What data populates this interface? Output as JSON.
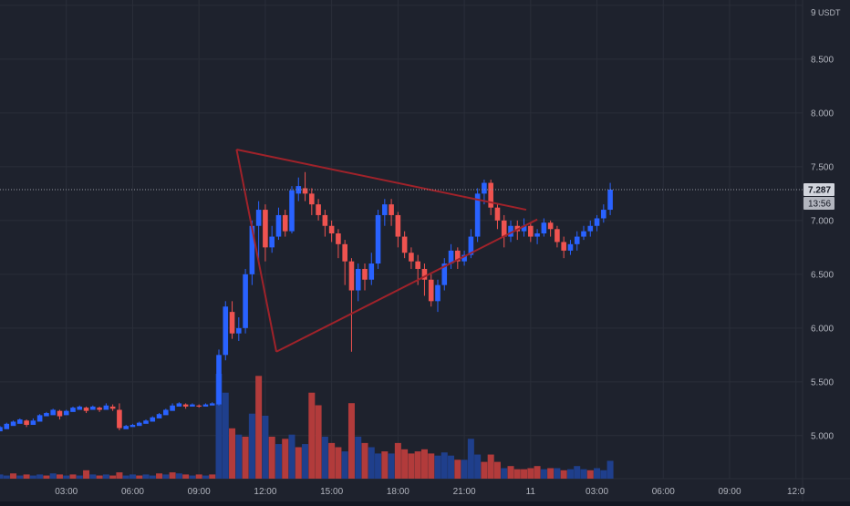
{
  "chart_data": {
    "type": "candlestick",
    "quote_unit": "USDT",
    "y_axis": {
      "min": 4.6,
      "max": 9.05,
      "ticks": [
        "5.000",
        "5.500",
        "6.000",
        "6.500",
        "7.000",
        "7.500",
        "8.000",
        "8.500",
        "9"
      ],
      "tick_values": [
        5.0,
        5.5,
        6.0,
        6.5,
        7.0,
        7.5,
        8.0,
        8.5,
        9.0
      ]
    },
    "x_axis": {
      "ticks": [
        "03:00",
        "06:00",
        "09:00",
        "12:00",
        "15:00",
        "18:00",
        "21:00",
        "11",
        "03:00",
        "06:00",
        "09:00",
        "12:0"
      ],
      "tick_hours": [
        3,
        6,
        9,
        12,
        15,
        18,
        21,
        24,
        27,
        30,
        33,
        36
      ],
      "range_hours": [
        0,
        36.3
      ]
    },
    "last_price": {
      "label": "7.287",
      "value": 7.287,
      "countdown": "13:56"
    },
    "colors": {
      "background": "#1e222d",
      "up": "#2962ff",
      "down": "#ef5350",
      "up_volume": "#1f3f8c",
      "down_volume": "#b23b3b",
      "triangle": "#a0222a",
      "grid": "#2a2e39"
    },
    "triangle": {
      "upper_line": [
        [
          10.7,
          7.66
        ],
        [
          23.8,
          7.1
        ]
      ],
      "lower_line": [
        [
          12.5,
          5.78
        ],
        [
          24.3,
          7.01
        ]
      ]
    },
    "candles": [
      [
        0.0,
        5.04,
        5.08,
        5.06,
        5.09
      ],
      [
        0.3,
        5.06,
        5.11,
        5.09,
        5.12
      ],
      [
        0.6,
        5.09,
        5.13,
        5.11,
        5.14
      ],
      [
        0.9,
        5.11,
        5.15,
        5.13,
        5.16
      ],
      [
        1.2,
        5.14,
        5.1,
        5.15,
        5.08
      ],
      [
        1.5,
        5.1,
        5.14,
        5.11,
        5.16
      ],
      [
        1.8,
        5.13,
        5.19,
        5.17,
        5.2
      ],
      [
        2.1,
        5.18,
        5.21,
        5.2,
        5.22
      ],
      [
        2.4,
        5.19,
        5.24,
        5.22,
        5.25
      ],
      [
        2.7,
        5.23,
        5.18,
        5.24,
        5.15
      ],
      [
        3.0,
        5.19,
        5.23,
        5.22,
        5.24
      ],
      [
        3.3,
        5.22,
        5.26,
        5.24,
        5.27
      ],
      [
        3.6,
        5.24,
        5.27,
        5.26,
        5.28
      ],
      [
        3.9,
        5.26,
        5.23,
        5.27,
        5.21
      ],
      [
        4.2,
        5.24,
        5.27,
        5.26,
        5.28
      ],
      [
        4.5,
        5.26,
        5.24,
        5.27,
        5.22
      ],
      [
        4.8,
        5.24,
        5.28,
        5.27,
        5.3
      ],
      [
        5.1,
        5.27,
        5.25,
        5.29,
        5.23
      ],
      [
        5.4,
        5.24,
        5.07,
        5.3,
        5.05
      ],
      [
        5.7,
        5.06,
        5.09,
        5.08,
        5.1
      ],
      [
        6.0,
        5.08,
        5.1,
        5.09,
        5.11
      ],
      [
        6.3,
        5.09,
        5.12,
        5.11,
        5.13
      ],
      [
        6.6,
        5.11,
        5.14,
        5.13,
        5.15
      ],
      [
        6.9,
        5.13,
        5.17,
        5.15,
        5.18
      ],
      [
        7.2,
        5.16,
        5.2,
        5.19,
        5.21
      ],
      [
        7.5,
        5.19,
        5.24,
        5.22,
        5.25
      ],
      [
        7.8,
        5.23,
        5.28,
        5.27,
        5.3
      ],
      [
        8.1,
        5.27,
        5.3,
        5.29,
        5.31
      ],
      [
        8.4,
        5.29,
        5.27,
        5.3,
        5.25
      ],
      [
        8.7,
        5.27,
        5.29,
        5.29,
        5.3
      ],
      [
        9.0,
        5.28,
        5.27,
        5.29,
        5.26
      ],
      [
        9.3,
        5.27,
        5.29,
        5.28,
        5.3
      ],
      [
        9.6,
        5.28,
        5.3,
        5.3,
        5.31
      ],
      [
        9.9,
        5.29,
        5.75,
        5.8,
        5.28
      ],
      [
        10.2,
        5.75,
        6.2,
        6.25,
        5.7
      ],
      [
        10.5,
        6.15,
        5.95,
        6.25,
        5.9
      ],
      [
        10.8,
        5.95,
        6.0,
        6.1,
        5.88
      ],
      [
        11.1,
        6.0,
        6.5,
        6.55,
        5.95
      ],
      [
        11.4,
        6.5,
        6.95,
        7.0,
        6.4
      ],
      [
        11.7,
        6.95,
        7.1,
        7.18,
        6.6
      ],
      [
        12.0,
        7.1,
        6.75,
        7.15,
        6.62
      ],
      [
        12.3,
        6.75,
        6.85,
        6.95,
        6.7
      ],
      [
        12.6,
        6.85,
        7.05,
        7.12,
        6.82
      ],
      [
        12.9,
        7.05,
        6.9,
        7.1,
        6.85
      ],
      [
        13.2,
        6.9,
        7.28,
        7.32,
        6.88
      ],
      [
        13.5,
        7.25,
        7.32,
        7.4,
        7.18
      ],
      [
        13.8,
        7.3,
        7.25,
        7.45,
        7.18
      ],
      [
        14.1,
        7.25,
        7.15,
        7.3,
        7.05
      ],
      [
        14.4,
        7.15,
        7.05,
        7.2,
        7.0
      ],
      [
        14.7,
        7.05,
        6.95,
        7.1,
        6.85
      ],
      [
        15.0,
        6.95,
        6.88,
        7.0,
        6.8
      ],
      [
        15.3,
        6.88,
        6.78,
        6.92,
        6.65
      ],
      [
        15.6,
        6.78,
        6.62,
        6.82,
        6.4
      ],
      [
        15.9,
        6.62,
        6.35,
        6.65,
        5.78
      ],
      [
        16.2,
        6.35,
        6.55,
        6.6,
        6.25
      ],
      [
        16.5,
        6.55,
        6.45,
        6.6,
        6.35
      ],
      [
        16.8,
        6.45,
        6.6,
        6.7,
        6.4
      ],
      [
        17.1,
        6.6,
        7.05,
        7.1,
        6.55
      ],
      [
        17.4,
        7.05,
        7.15,
        7.2,
        6.95
      ],
      [
        17.7,
        7.15,
        7.05,
        7.2,
        6.95
      ],
      [
        18.0,
        7.05,
        6.85,
        7.08,
        6.75
      ],
      [
        18.3,
        6.85,
        6.7,
        6.9,
        6.65
      ],
      [
        18.6,
        6.7,
        6.62,
        6.75,
        6.55
      ],
      [
        18.9,
        6.62,
        6.55,
        6.68,
        6.4
      ],
      [
        19.2,
        6.55,
        6.45,
        6.6,
        6.3
      ],
      [
        19.5,
        6.45,
        6.25,
        6.5,
        6.2
      ],
      [
        19.8,
        6.25,
        6.4,
        6.45,
        6.15
      ],
      [
        20.1,
        6.4,
        6.6,
        6.65,
        6.35
      ],
      [
        20.4,
        6.6,
        6.72,
        6.78,
        6.55
      ],
      [
        20.7,
        6.72,
        6.62,
        6.75,
        6.55
      ],
      [
        21.0,
        6.62,
        6.68,
        6.72,
        6.58
      ],
      [
        21.3,
        6.68,
        6.85,
        6.92,
        6.65
      ],
      [
        21.6,
        6.85,
        7.25,
        7.3,
        6.8
      ],
      [
        21.9,
        7.25,
        7.35,
        7.38,
        7.15
      ],
      [
        22.2,
        7.35,
        7.12,
        7.38,
        7.05
      ],
      [
        22.5,
        7.12,
        7.0,
        7.15,
        6.92
      ],
      [
        22.8,
        7.0,
        6.85,
        7.05,
        6.75
      ],
      [
        23.1,
        6.85,
        6.95,
        7.0,
        6.8
      ],
      [
        23.4,
        6.95,
        6.9,
        7.0,
        6.82
      ],
      [
        23.7,
        6.9,
        6.95,
        7.02,
        6.85
      ],
      [
        24.0,
        6.95,
        6.85,
        6.98,
        6.8
      ],
      [
        24.3,
        6.85,
        6.88,
        6.92,
        6.78
      ],
      [
        24.6,
        6.88,
        6.98,
        7.02,
        6.85
      ],
      [
        24.9,
        6.98,
        6.92,
        7.0,
        6.85
      ],
      [
        25.2,
        6.92,
        6.8,
        6.95,
        6.75
      ],
      [
        25.5,
        6.8,
        6.72,
        6.85,
        6.65
      ],
      [
        25.8,
        6.72,
        6.78,
        6.82,
        6.68
      ],
      [
        26.1,
        6.78,
        6.85,
        6.9,
        6.72
      ],
      [
        26.4,
        6.85,
        6.9,
        6.95,
        6.82
      ],
      [
        26.7,
        6.9,
        6.95,
        7.0,
        6.85
      ],
      [
        27.0,
        6.95,
        7.02,
        7.05,
        6.9
      ],
      [
        27.3,
        7.02,
        7.1,
        7.15,
        6.98
      ],
      [
        27.6,
        7.1,
        7.287,
        7.35,
        7.05
      ]
    ],
    "volumes": [
      [
        0.0,
        0.04,
        1
      ],
      [
        0.3,
        0.03,
        1
      ],
      [
        0.6,
        0.05,
        0
      ],
      [
        0.9,
        0.03,
        1
      ],
      [
        1.2,
        0.04,
        0
      ],
      [
        1.5,
        0.03,
        1
      ],
      [
        1.8,
        0.04,
        1
      ],
      [
        2.1,
        0.03,
        0
      ],
      [
        2.4,
        0.05,
        1
      ],
      [
        2.7,
        0.04,
        0
      ],
      [
        3.0,
        0.03,
        1
      ],
      [
        3.3,
        0.04,
        0
      ],
      [
        3.6,
        0.03,
        1
      ],
      [
        3.9,
        0.08,
        0
      ],
      [
        4.2,
        0.04,
        1
      ],
      [
        4.5,
        0.03,
        0
      ],
      [
        4.8,
        0.04,
        1
      ],
      [
        5.1,
        0.03,
        0
      ],
      [
        5.4,
        0.06,
        0
      ],
      [
        5.7,
        0.03,
        1
      ],
      [
        6.0,
        0.04,
        1
      ],
      [
        6.3,
        0.03,
        0
      ],
      [
        6.6,
        0.04,
        1
      ],
      [
        6.9,
        0.03,
        1
      ],
      [
        7.2,
        0.05,
        0
      ],
      [
        7.5,
        0.04,
        1
      ],
      [
        7.8,
        0.06,
        0
      ],
      [
        8.1,
        0.05,
        1
      ],
      [
        8.4,
        0.04,
        0
      ],
      [
        8.7,
        0.03,
        1
      ],
      [
        9.0,
        0.04,
        0
      ],
      [
        9.3,
        0.03,
        1
      ],
      [
        9.6,
        0.04,
        0
      ],
      [
        9.9,
        1.0,
        1
      ],
      [
        10.2,
        0.82,
        1
      ],
      [
        10.5,
        0.48,
        0
      ],
      [
        10.8,
        0.42,
        1
      ],
      [
        11.1,
        0.4,
        0
      ],
      [
        11.4,
        0.62,
        1
      ],
      [
        11.7,
        0.98,
        0
      ],
      [
        12.0,
        0.6,
        1
      ],
      [
        12.3,
        0.4,
        0
      ],
      [
        12.6,
        0.33,
        1
      ],
      [
        12.9,
        0.38,
        0
      ],
      [
        13.2,
        0.42,
        1
      ],
      [
        13.5,
        0.3,
        0
      ],
      [
        13.8,
        0.33,
        1
      ],
      [
        14.1,
        0.82,
        0
      ],
      [
        14.4,
        0.7,
        0
      ],
      [
        14.7,
        0.4,
        1
      ],
      [
        15.0,
        0.34,
        0
      ],
      [
        15.3,
        0.3,
        0
      ],
      [
        15.6,
        0.26,
        1
      ],
      [
        15.9,
        0.72,
        0
      ],
      [
        16.2,
        0.4,
        1
      ],
      [
        16.5,
        0.34,
        0
      ],
      [
        16.8,
        0.3,
        1
      ],
      [
        17.1,
        0.24,
        1
      ],
      [
        17.4,
        0.26,
        0
      ],
      [
        17.7,
        0.24,
        1
      ],
      [
        18.0,
        0.34,
        0
      ],
      [
        18.3,
        0.28,
        0
      ],
      [
        18.6,
        0.24,
        0
      ],
      [
        18.9,
        0.26,
        0
      ],
      [
        19.2,
        0.28,
        0
      ],
      [
        19.5,
        0.24,
        0
      ],
      [
        19.8,
        0.22,
        1
      ],
      [
        20.1,
        0.25,
        1
      ],
      [
        20.4,
        0.22,
        1
      ],
      [
        20.7,
        0.18,
        0
      ],
      [
        21.0,
        0.18,
        1
      ],
      [
        21.3,
        0.38,
        1
      ],
      [
        21.6,
        0.23,
        1
      ],
      [
        21.9,
        0.16,
        0
      ],
      [
        22.2,
        0.23,
        0
      ],
      [
        22.5,
        0.16,
        0
      ],
      [
        22.8,
        0.1,
        1
      ],
      [
        23.1,
        0.12,
        0
      ],
      [
        23.4,
        0.09,
        0
      ],
      [
        23.7,
        0.09,
        0
      ],
      [
        24.0,
        0.1,
        0
      ],
      [
        24.3,
        0.12,
        0
      ],
      [
        24.6,
        0.09,
        1
      ],
      [
        24.9,
        0.1,
        0
      ],
      [
        25.2,
        0.1,
        1
      ],
      [
        25.5,
        0.08,
        0
      ],
      [
        25.8,
        0.09,
        1
      ],
      [
        26.1,
        0.12,
        1
      ],
      [
        26.4,
        0.09,
        1
      ],
      [
        26.7,
        0.08,
        0
      ],
      [
        27.0,
        0.1,
        1
      ],
      [
        27.3,
        0.08,
        1
      ],
      [
        27.6,
        0.17,
        1
      ]
    ]
  }
}
